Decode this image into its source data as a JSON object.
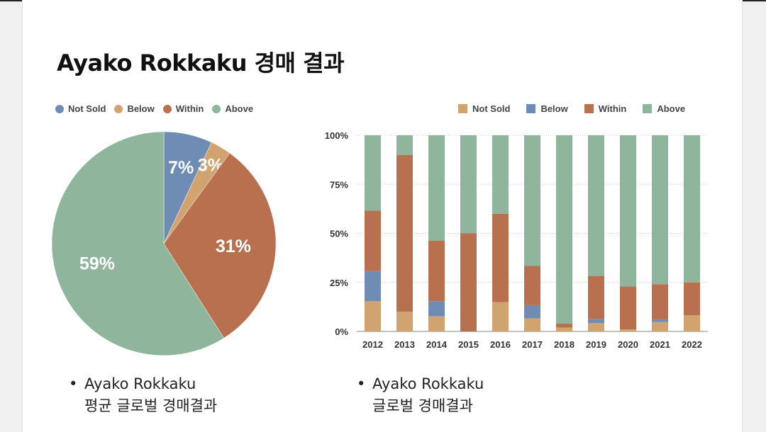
{
  "title": "Ayako Rokkaku 경매 결과",
  "colors": {
    "not_sold": "#d1a46f",
    "below": "#6f8cb5",
    "within": "#b8704f",
    "above": "#8fb59c"
  },
  "chart_data": [
    {
      "type": "pie",
      "legend": [
        "Not Sold",
        "Below",
        "Within",
        "Above"
      ],
      "legend_placement": "top-left",
      "slices": [
        {
          "name": "Not Sold",
          "value": 7,
          "label": "7%"
        },
        {
          "name": "Below",
          "value": 3,
          "label": "3%"
        },
        {
          "name": "Within",
          "value": 31,
          "label": "31%"
        },
        {
          "name": "Above",
          "value": 59,
          "label": "59%"
        }
      ]
    },
    {
      "type": "bar",
      "stacked": true,
      "legend": [
        "Not Sold",
        "Below",
        "Within",
        "Above"
      ],
      "legend_placement": "top-right",
      "categories": [
        "2012",
        "2013",
        "2014",
        "2015",
        "2016",
        "2017",
        "2018",
        "2019",
        "2020",
        "2021",
        "2022"
      ],
      "series": [
        {
          "name": "Not Sold",
          "values": [
            15.4,
            10,
            7.7,
            0,
            15,
            6.7,
            2,
            4.3,
            1,
            4.8,
            8.3
          ]
        },
        {
          "name": "Below",
          "values": [
            15.4,
            0,
            7.7,
            0,
            0,
            6.7,
            0,
            2.1,
            0,
            1.2,
            0
          ]
        },
        {
          "name": "Within",
          "values": [
            30.8,
            80,
            30.8,
            50,
            45,
            20,
            2,
            21.9,
            21.9,
            18.1,
            16.7
          ]
        },
        {
          "name": "Above",
          "values": [
            38.4,
            10,
            53.8,
            50,
            40,
            66.6,
            96,
            71.7,
            77.1,
            75.9,
            75
          ]
        }
      ],
      "y_ticks": [
        "0%",
        "25%",
        "50%",
        "75%",
        "100%"
      ],
      "ylim": [
        0,
        100
      ],
      "grid": true
    }
  ],
  "captions": {
    "left": {
      "bullet": "•",
      "line1": "Ayako Rokkaku",
      "line2": "평균 글로벌 경매결과"
    },
    "right": {
      "bullet": "•",
      "line1": "Ayako Rokkaku",
      "line2": "글로벌 경매결과"
    }
  }
}
